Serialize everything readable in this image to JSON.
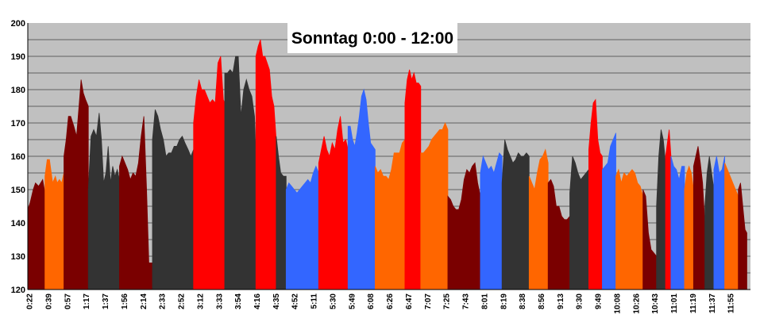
{
  "chart_data": {
    "type": "area",
    "title": "Sonntag 0:00 - 12:00",
    "xlabel": "",
    "ylabel": "",
    "ylim": [
      120,
      200
    ],
    "yticks": [
      120,
      130,
      140,
      150,
      160,
      170,
      180,
      190,
      200
    ],
    "grid": true,
    "x_tick_labels": [
      "0:22",
      "0:39",
      "0:57",
      "1:17",
      "1:37",
      "1:56",
      "2:14",
      "2:33",
      "2:52",
      "3:12",
      "3:33",
      "3:54",
      "4:16",
      "4:35",
      "4:52",
      "5:11",
      "5:30",
      "5:49",
      "6:08",
      "6:26",
      "6:47",
      "7:07",
      "7:25",
      "7:43",
      "8:01",
      "8:19",
      "8:38",
      "8:56",
      "9:13",
      "9:30",
      "9:49",
      "10:08",
      "10:26",
      "10:43",
      "11:01",
      "11:19",
      "11:37",
      "11:55"
    ],
    "colors": {
      "background": "#c0c0c0",
      "darkred": "#7a0000",
      "orange": "#ff6600",
      "darkgray": "#333333",
      "red": "#ff0000",
      "blue": "#3366ff"
    },
    "segments": [
      {
        "color": "darkred",
        "x": [
          0,
          0.5,
          1.2,
          1.7,
          2.4,
          3.3,
          3.8
        ],
        "values": [
          144,
          146,
          150,
          152,
          151,
          153,
          149
        ]
      },
      {
        "color": "orange",
        "x": [
          3.8,
          4.3,
          4.8,
          5.5,
          6.1,
          6.5,
          7.0,
          7.5,
          8.0
        ],
        "values": [
          154,
          159,
          159,
          152,
          154,
          152,
          153,
          152,
          155
        ]
      },
      {
        "color": "darkred",
        "x": [
          8.0,
          8.5,
          9.0,
          9.5,
          10.2,
          10.8,
          11.4,
          11.8,
          12.3,
          12.8,
          13.4
        ],
        "values": [
          160,
          165,
          172,
          172,
          169,
          166,
          176,
          183,
          179,
          177,
          175
        ]
      },
      {
        "color": "darkgray",
        "x": [
          13.4,
          14.0,
          14.6,
          15.2,
          15.8,
          16.3,
          16.8,
          17.3,
          17.8,
          18.3,
          18.8,
          19.3,
          19.8,
          20.3
        ],
        "values": [
          150,
          166,
          168,
          166,
          173,
          165,
          152,
          155,
          163,
          152,
          157,
          154,
          156,
          153
        ]
      },
      {
        "color": "darkred",
        "x": [
          20.3,
          20.9,
          21.5,
          22.1,
          22.7,
          23.3,
          23.9,
          24.5,
          25.1,
          25.7,
          26.3,
          26.8,
          27.6
        ],
        "values": [
          157,
          160,
          158,
          156,
          153,
          155,
          154,
          158,
          166,
          172,
          150,
          128,
          128
        ]
      },
      {
        "color": "darkgray",
        "x": [
          27.6,
          28.2,
          28.8,
          29.4,
          30.0,
          30.6,
          31.2,
          31.8,
          32.4,
          33.0,
          33.6,
          34.2,
          34.8,
          35.5,
          36.1,
          36.7
        ],
        "values": [
          165,
          174,
          172,
          168,
          165,
          160,
          161,
          161,
          163,
          163,
          165,
          166,
          164,
          162,
          160,
          162
        ]
      },
      {
        "color": "red",
        "x": [
          36.7,
          37.3,
          37.9,
          38.5,
          39.1,
          39.7,
          40.3,
          40.9,
          41.5,
          42.1,
          42.7,
          43.3,
          43.6
        ],
        "values": [
          170,
          178,
          183,
          180,
          180,
          178,
          176,
          177,
          176,
          188,
          190,
          177,
          176
        ]
      },
      {
        "color": "darkgray",
        "x": [
          43.6,
          44.2,
          44.8,
          45.4,
          46.0,
          46.6,
          47.2,
          47.8,
          48.4,
          49.0,
          49.6,
          50.2,
          50.5
        ],
        "values": [
          185,
          185,
          186,
          185,
          190,
          190,
          172,
          180,
          183,
          180,
          178,
          172,
          160
        ]
      },
      {
        "color": "red",
        "x": [
          50.5,
          51.0,
          51.5,
          52.0,
          52.5,
          53.0,
          53.5,
          54.0,
          54.5,
          55.0
        ],
        "values": [
          190,
          193,
          195,
          190,
          190,
          188,
          186,
          178,
          175,
          165
        ]
      },
      {
        "color": "darkgray",
        "x": [
          55.0,
          55.5,
          56.0,
          56.6,
          57.2
        ],
        "values": [
          166,
          160,
          155,
          154,
          154
        ]
      },
      {
        "color": "blue",
        "x": [
          57.2,
          57.8,
          58.4,
          59.0,
          59.6,
          60.2,
          60.8,
          61.4,
          62.0,
          62.6,
          63.2,
          63.8,
          64.4
        ],
        "values": [
          150,
          152,
          151,
          150,
          149,
          150,
          151,
          152,
          153,
          152,
          155,
          157,
          155
        ]
      },
      {
        "color": "red",
        "x": [
          64.4,
          65.0,
          65.6,
          66.2,
          66.8,
          67.4,
          68.0,
          68.6,
          69.2,
          69.8,
          70.4,
          70.9
        ],
        "values": [
          158,
          162,
          166,
          162,
          160,
          164,
          162,
          168,
          172,
          164,
          165,
          162
        ]
      },
      {
        "color": "blue",
        "x": [
          70.9,
          71.4,
          71.9,
          72.4,
          72.9,
          73.4,
          73.9,
          74.4,
          74.9,
          75.4,
          75.9,
          76.4,
          76.9
        ],
        "values": [
          169,
          169,
          165,
          163,
          167,
          172,
          178,
          180,
          177,
          170,
          164,
          163,
          162
        ]
      },
      {
        "color": "orange",
        "x": [
          76.9,
          77.5,
          78.1,
          78.7,
          79.3,
          79.9,
          80.5,
          81.1,
          81.7,
          82.3,
          82.9,
          83.5
        ],
        "values": [
          157,
          155,
          156,
          154,
          154,
          153,
          156,
          161,
          161,
          161,
          164,
          165
        ]
      },
      {
        "color": "red",
        "x": [
          83.5,
          84.0,
          84.5,
          85.0,
          85.5,
          86.0,
          86.5,
          87.0
        ],
        "values": [
          176,
          183,
          186,
          183,
          185,
          182,
          182,
          181
        ]
      },
      {
        "color": "orange",
        "x": [
          87.0,
          87.6,
          88.2,
          88.8,
          89.4,
          90.0,
          90.6,
          91.2,
          91.8,
          92.4,
          93.0
        ],
        "values": [
          161,
          161,
          162,
          163,
          165,
          166,
          167,
          168,
          168,
          170,
          168
        ]
      },
      {
        "color": "darkred",
        "x": [
          93.0,
          93.6,
          94.2,
          94.8,
          95.4,
          96.0,
          96.6,
          97.2,
          97.8,
          98.4,
          99.0,
          99.6,
          100.2
        ],
        "values": [
          148,
          147,
          145,
          144,
          144,
          147,
          153,
          156,
          155,
          157,
          158,
          152,
          148
        ]
      },
      {
        "color": "blue",
        "x": [
          100.2,
          100.8,
          101.4,
          102.0,
          102.6,
          103.2,
          103.8,
          104.4,
          105.0
        ],
        "values": [
          155,
          160,
          158,
          156,
          157,
          155,
          158,
          161,
          160
        ]
      },
      {
        "color": "darkgray",
        "x": [
          105.0,
          105.6,
          106.2,
          106.8,
          107.4,
          108.0,
          108.6,
          109.2,
          109.8,
          110.4,
          111.0
        ],
        "values": [
          152,
          165,
          162,
          160,
          158,
          159,
          161,
          160,
          160,
          161,
          160
        ]
      },
      {
        "color": "orange",
        "x": [
          111.0,
          111.6,
          112.2,
          112.8,
          113.4,
          114.0,
          114.6,
          115.2
        ],
        "values": [
          154,
          152,
          150,
          155,
          159,
          160,
          162,
          158
        ]
      },
      {
        "color": "darkred",
        "x": [
          115.2,
          115.8,
          116.4,
          117.0,
          117.6,
          118.2,
          118.8,
          119.4,
          120.0
        ],
        "values": [
          152,
          153,
          151,
          145,
          145,
          142,
          141,
          141,
          142
        ]
      },
      {
        "color": "darkgray",
        "x": [
          120.0,
          120.6,
          121.2,
          121.8,
          122.4,
          123.0,
          123.6,
          124.2
        ],
        "values": [
          149,
          160,
          158,
          155,
          153,
          154,
          155,
          156
        ]
      },
      {
        "color": "red",
        "x": [
          124.2,
          124.7,
          125.2,
          125.7,
          126.2,
          126.7,
          127.2
        ],
        "values": [
          162,
          170,
          176,
          177,
          165,
          161,
          160
        ]
      },
      {
        "color": "blue",
        "x": [
          127.2,
          127.8,
          128.4,
          129.0,
          129.6,
          130.2
        ],
        "values": [
          156,
          157,
          158,
          163,
          165,
          167
        ]
      },
      {
        "color": "orange",
        "x": [
          130.2,
          130.8,
          131.4,
          132.0,
          132.6,
          133.2,
          133.8,
          134.4,
          135.0,
          135.6,
          136.2
        ],
        "values": [
          154,
          156,
          152,
          155,
          154,
          155,
          156,
          155,
          152,
          151,
          148
        ]
      },
      {
        "color": "darkred",
        "x": [
          136.2,
          136.8,
          137.4,
          138.0,
          138.6,
          139.2
        ],
        "values": [
          150,
          148,
          137,
          132,
          131,
          130
        ]
      },
      {
        "color": "darkgray",
        "x": [
          139.2,
          139.7,
          140.2,
          140.7,
          141.2
        ],
        "values": [
          145,
          160,
          168,
          165,
          158
        ]
      },
      {
        "color": "red",
        "x": [
          141.2,
          141.6,
          142.0,
          142.4
        ],
        "values": [
          160,
          164,
          168,
          160
        ]
      },
      {
        "color": "blue",
        "x": [
          142.4,
          143.0,
          143.6,
          144.2,
          144.8,
          145.4
        ],
        "values": [
          160,
          157,
          156,
          153,
          157,
          157
        ]
      },
      {
        "color": "orange",
        "x": [
          145.4,
          145.9,
          146.4,
          146.9,
          147.4
        ],
        "values": [
          150,
          155,
          157,
          155,
          150
        ]
      },
      {
        "color": "darkred",
        "x": [
          147.4,
          147.9,
          148.4,
          148.9,
          149.4,
          149.9
        ],
        "values": [
          157,
          160,
          163,
          158,
          152,
          140
        ]
      },
      {
        "color": "darkgray",
        "x": [
          149.9,
          150.4,
          150.9,
          151.4,
          151.9
        ],
        "values": [
          145,
          155,
          160,
          155,
          150
        ]
      },
      {
        "color": "blue",
        "x": [
          151.9,
          152.5,
          153.1,
          153.7,
          154.3
        ],
        "values": [
          156,
          160,
          155,
          156,
          160
        ]
      },
      {
        "color": "orange",
        "x": [
          154.3,
          154.9,
          155.5,
          156.1,
          156.7,
          157.3
        ],
        "values": [
          158,
          156,
          154,
          152,
          150,
          148
        ]
      },
      {
        "color": "darkred",
        "x": [
          157.3,
          157.8,
          158.3,
          158.8,
          159.2
        ],
        "values": [
          150,
          152,
          145,
          138,
          137
        ]
      }
    ]
  }
}
